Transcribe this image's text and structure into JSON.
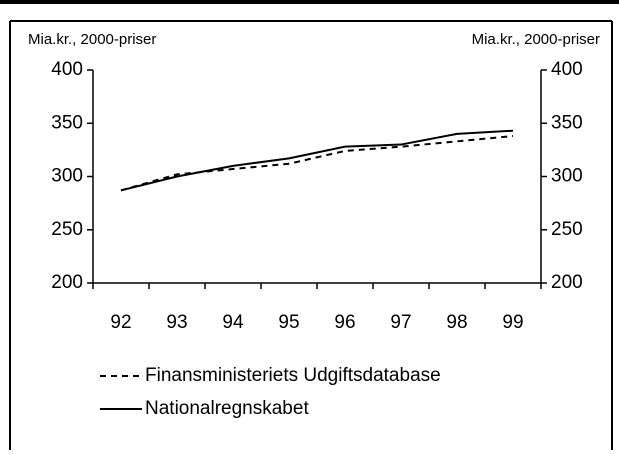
{
  "chart_data": {
    "type": "line",
    "ylabel": "Mia.kr., 2000-priser",
    "y2label": "Mia.kr., 2000-priser",
    "categories": [
      "92",
      "93",
      "94",
      "95",
      "96",
      "97",
      "98",
      "99"
    ],
    "series": [
      {
        "name": "Finansministeriets Udgiftsdatabase",
        "color": "#000000",
        "dash": "dashed",
        "values": [
          287,
          302,
          307,
          312,
          324,
          328,
          333,
          338
        ]
      },
      {
        "name": "Nationalregnskabet",
        "color": "#000000",
        "dash": "solid",
        "values": [
          287,
          300,
          310,
          317,
          328,
          330,
          340,
          343
        ]
      }
    ],
    "ylim": [
      200,
      400
    ],
    "yticks": [
      200,
      250,
      300,
      350,
      400
    ],
    "y2lim": [
      200,
      400
    ],
    "y2ticks": [
      200,
      250,
      300,
      350,
      400
    ],
    "grid": false
  }
}
